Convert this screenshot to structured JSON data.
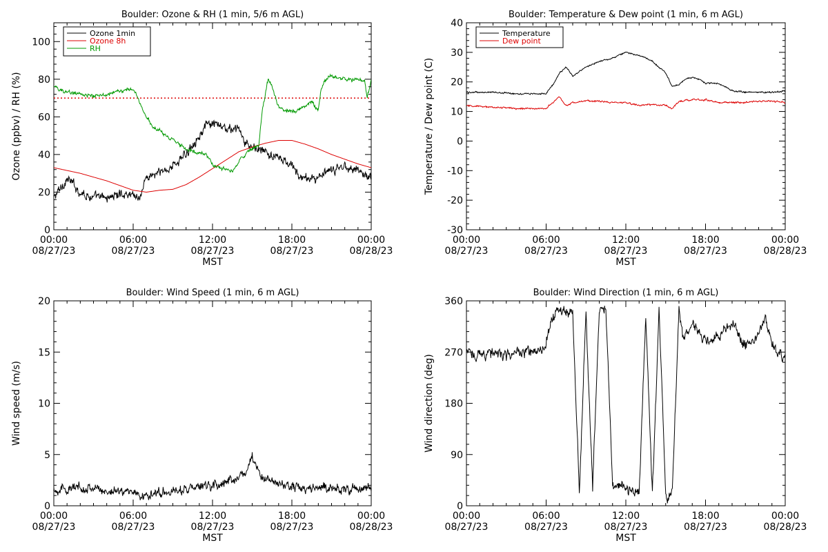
{
  "time_axis": {
    "tick_labels": [
      "00:00",
      "06:00",
      "12:00",
      "18:00",
      "00:00"
    ],
    "date_labels": [
      "08/27/23",
      "08/27/23",
      "08/27/23",
      "08/27/23",
      "08/28/23"
    ],
    "xlabel": "MST"
  },
  "colors": {
    "black": "#000000",
    "red": "#dd0000",
    "green": "#009900"
  },
  "chart_data": [
    {
      "type": "line",
      "title": "Boulder: Ozone & RH (1 min, 5/6 m AGL)",
      "ylabel": "Ozone (ppbv) / RH (%)",
      "x_range": [
        "2023-08-27 00:00",
        "2023-08-28 00:00"
      ],
      "ylim": [
        0,
        110
      ],
      "yticks": [
        0,
        20,
        40,
        60,
        80,
        100
      ],
      "legend_position": "top-left",
      "reference_line": {
        "y": 70,
        "style": "dotted",
        "color": "#dd0000"
      },
      "series": [
        {
          "name": "Ozone 1min",
          "color": "#000000",
          "noise": 3.0,
          "x": [
            0,
            0.5,
            1,
            1.5,
            2,
            3,
            4,
            5,
            6,
            6.5,
            7,
            8,
            9,
            10,
            10.5,
            11,
            11.5,
            12,
            12.5,
            13,
            13.5,
            14,
            14.5,
            15,
            15.5,
            16,
            16.5,
            17,
            17.5,
            18,
            18.5,
            19,
            20,
            21,
            22,
            23,
            23.5,
            24
          ],
          "y": [
            17,
            22,
            27,
            24,
            20,
            17,
            17,
            19,
            19,
            17,
            28,
            30,
            34,
            40,
            46,
            50,
            55,
            56,
            55,
            54,
            53,
            54,
            45,
            44,
            43,
            41,
            39,
            38,
            36,
            34,
            29,
            27,
            28,
            31,
            34,
            32,
            29,
            28
          ]
        },
        {
          "name": "Ozone 8h",
          "color": "#dd0000",
          "noise": 0,
          "x": [
            0,
            2,
            4,
            6,
            7,
            8,
            9,
            10,
            11,
            12,
            13,
            14,
            15,
            16,
            17,
            18,
            19,
            20,
            21,
            22,
            23,
            24
          ],
          "y": [
            33,
            30,
            26,
            21,
            20,
            21,
            21.5,
            24,
            28,
            32.5,
            37,
            41.5,
            44,
            46,
            47.5,
            47.5,
            45.5,
            43,
            40,
            37.5,
            35,
            33
          ]
        },
        {
          "name": "RH",
          "color": "#009900",
          "noise": 1.2,
          "x": [
            0,
            1,
            2,
            3,
            4,
            5,
            6,
            6.5,
            7,
            7.5,
            8,
            8.5,
            9,
            10,
            11,
            11.5,
            12,
            12.5,
            13,
            13.5,
            14,
            14.5,
            15,
            15.5,
            15.8,
            16.2,
            16.5,
            17,
            17.5,
            18,
            19,
            19.5,
            20,
            20.2,
            20.5,
            21,
            22,
            23,
            23.5,
            23.7,
            24
          ],
          "y": [
            76,
            73,
            72,
            71,
            72,
            74,
            75,
            68,
            60,
            54,
            53,
            50,
            48,
            43,
            41,
            40,
            35,
            33,
            32,
            31,
            37,
            40,
            43,
            45,
            65,
            80,
            77,
            65,
            64,
            62,
            66,
            68,
            63,
            74,
            80,
            82,
            80,
            80,
            79,
            70,
            79
          ]
        }
      ]
    },
    {
      "type": "line",
      "title": "Boulder: Temperature & Dew point (1 min, 6 m AGL)",
      "ylabel": "Temperature / Dew point (C)",
      "x_range": [
        "2023-08-27 00:00",
        "2023-08-28 00:00"
      ],
      "ylim": [
        -30,
        40
      ],
      "yticks": [
        -30,
        -20,
        -10,
        0,
        10,
        20,
        30,
        40
      ],
      "legend_position": "top-left",
      "series": [
        {
          "name": "Temperature",
          "color": "#000000",
          "noise": 0.3,
          "x": [
            0,
            2,
            4,
            6,
            6.5,
            7,
            7.5,
            8,
            9,
            10,
            11,
            12,
            13,
            14,
            15,
            15.5,
            16,
            16.5,
            17,
            17.5,
            18,
            19,
            20,
            21,
            22,
            23,
            24
          ],
          "y": [
            16.5,
            16.5,
            16,
            16,
            19,
            23,
            25,
            22,
            25,
            27,
            28,
            30,
            29,
            27,
            23,
            18.5,
            19,
            21,
            21.5,
            21,
            19.5,
            19.5,
            17,
            16.5,
            16.5,
            16.5,
            17
          ]
        },
        {
          "name": "Dew point",
          "color": "#dd0000",
          "noise": 0.35,
          "x": [
            0,
            2,
            4,
            6,
            6.5,
            7,
            7.5,
            8,
            9,
            10,
            11,
            12,
            13,
            14,
            15,
            15.5,
            16,
            17,
            18,
            19,
            20,
            21,
            22,
            23,
            24
          ],
          "y": [
            12,
            11.5,
            11,
            11,
            13,
            15,
            12,
            13,
            13.5,
            13.5,
            13,
            13,
            12,
            12.5,
            12,
            11,
            13.5,
            14,
            14,
            13,
            13,
            13,
            13.5,
            13.5,
            13
          ]
        }
      ]
    },
    {
      "type": "line",
      "title": "Boulder: Wind Speed (1 min, 6 m AGL)",
      "ylabel": "Wind speed (m/s)",
      "x_range": [
        "2023-08-27 00:00",
        "2023-08-28 00:00"
      ],
      "ylim": [
        0,
        20
      ],
      "yticks": [
        0,
        5,
        10,
        15,
        20
      ],
      "series": [
        {
          "color": "#000000",
          "noise": 0.55,
          "x": [
            0,
            1,
            2,
            3,
            4,
            5,
            6,
            6.5,
            7,
            8,
            9,
            10,
            11,
            12,
            13,
            14,
            14.5,
            15,
            15.5,
            16,
            17,
            18,
            19,
            20,
            21,
            22,
            23,
            24
          ],
          "y": [
            1.6,
            1.6,
            1.8,
            1.7,
            1.4,
            1.5,
            1.4,
            1.0,
            0.9,
            1.4,
            1.4,
            1.6,
            1.8,
            2.0,
            2.3,
            2.8,
            3.3,
            4.6,
            3.3,
            2.6,
            2.1,
            1.9,
            1.7,
            1.8,
            1.7,
            1.6,
            1.6,
            1.7
          ]
        }
      ]
    },
    {
      "type": "line",
      "title": "Boulder: Wind Direction (1 min, 6 m AGL)",
      "ylabel": "Wind direction (deg)",
      "x_range": [
        "2023-08-27 00:00",
        "2023-08-28 00:00"
      ],
      "ylim": [
        0,
        360
      ],
      "yticks": [
        0,
        90,
        180,
        270,
        360
      ],
      "series": [
        {
          "color": "#000000",
          "noise": 12,
          "x": [
            0,
            1,
            2,
            3,
            4,
            5,
            5.9,
            6.4,
            7,
            8,
            8.5,
            9,
            9.5,
            10,
            10.5,
            11,
            11.5,
            12,
            12.5,
            13,
            13.5,
            14,
            14.5,
            15,
            15.5,
            16,
            16.3,
            16.7,
            17,
            18,
            19,
            20,
            21,
            22,
            22.5,
            23,
            23.5,
            24
          ],
          "y": [
            270,
            265,
            270,
            262,
            270,
            268,
            272,
            330,
            345,
            340,
            25,
            340,
            35,
            345,
            345,
            40,
            35,
            30,
            25,
            20,
            340,
            20,
            345,
            15,
            25,
            350,
            300,
            300,
            320,
            290,
            300,
            320,
            280,
            300,
            330,
            290,
            260,
            270
          ]
        }
      ]
    }
  ]
}
